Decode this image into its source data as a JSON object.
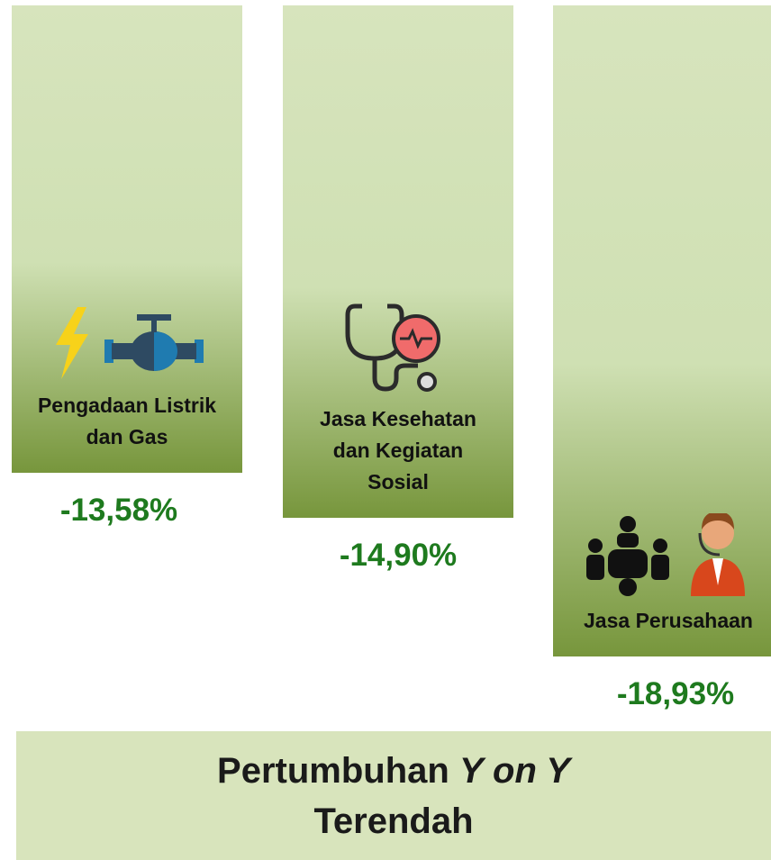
{
  "chart_data": {
    "type": "bar",
    "title": [
      "Pertumbuhan",
      "Y on Y",
      "Terendah"
    ],
    "categories": [
      "Pengadaan Listrik dan Gas",
      "Jasa Kesehatan dan Kegiatan Sosial",
      "Jasa Perusahaan"
    ],
    "values": [
      -13.58,
      -14.9,
      -18.93
    ],
    "value_labels": [
      "-13,58%",
      "-14,90%",
      "-18,93%"
    ],
    "color": "#77963c",
    "label_color": "#1e7a1e"
  }
}
